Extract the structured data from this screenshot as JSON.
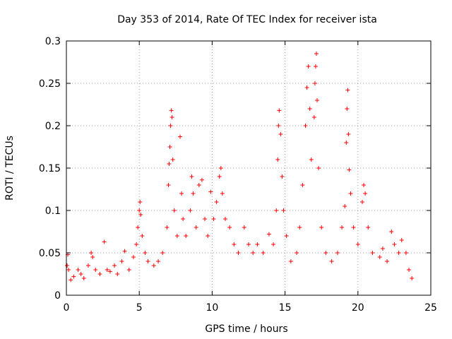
{
  "chart_data": {
    "type": "scatter",
    "title": "Day 353 of 2014, Rate Of TEC Index for receiver ista",
    "xlabel": "GPS time / hours",
    "ylabel": "ROTI / TECUs",
    "xlim": [
      0,
      25
    ],
    "ylim": [
      0,
      0.3
    ],
    "x_ticks": [
      0,
      5,
      10,
      15,
      20,
      25
    ],
    "x_tick_labels": [
      "0",
      "5",
      "10",
      "15",
      "20",
      "25"
    ],
    "y_ticks": [
      0,
      0.05,
      0.1,
      0.15,
      0.2,
      0.25,
      0.3
    ],
    "y_tick_labels": [
      "0",
      "0.05",
      "0.1",
      "0.15",
      "0.2",
      "0.25",
      "0.3"
    ],
    "grid": true,
    "marker": "+",
    "color": "#ff0000",
    "series": [
      {
        "name": "ROTI",
        "points": [
          [
            0.05,
            0.035
          ],
          [
            0.1,
            0.048
          ],
          [
            0.15,
            0.03
          ],
          [
            0.3,
            0.018
          ],
          [
            0.5,
            0.022
          ],
          [
            0.8,
            0.03
          ],
          [
            1.0,
            0.025
          ],
          [
            1.2,
            0.02
          ],
          [
            1.5,
            0.035
          ],
          [
            1.7,
            0.05
          ],
          [
            1.8,
            0.045
          ],
          [
            2.0,
            0.03
          ],
          [
            2.3,
            0.025
          ],
          [
            2.6,
            0.063
          ],
          [
            2.8,
            0.03
          ],
          [
            3.0,
            0.028
          ],
          [
            3.3,
            0.035
          ],
          [
            3.5,
            0.025
          ],
          [
            3.8,
            0.04
          ],
          [
            4.0,
            0.052
          ],
          [
            4.3,
            0.03
          ],
          [
            4.6,
            0.045
          ],
          [
            4.8,
            0.06
          ],
          [
            4.9,
            0.08
          ],
          [
            5.0,
            0.1
          ],
          [
            5.05,
            0.11
          ],
          [
            5.1,
            0.095
          ],
          [
            5.2,
            0.07
          ],
          [
            5.4,
            0.05
          ],
          [
            5.6,
            0.04
          ],
          [
            6.0,
            0.035
          ],
          [
            6.3,
            0.04
          ],
          [
            6.6,
            0.05
          ],
          [
            6.9,
            0.08
          ],
          [
            7.0,
            0.13
          ],
          [
            7.05,
            0.155
          ],
          [
            7.1,
            0.175
          ],
          [
            7.15,
            0.2
          ],
          [
            7.2,
            0.218
          ],
          [
            7.25,
            0.21
          ],
          [
            7.3,
            0.16
          ],
          [
            7.4,
            0.1
          ],
          [
            7.6,
            0.07
          ],
          [
            7.8,
            0.187
          ],
          [
            7.9,
            0.12
          ],
          [
            8.0,
            0.09
          ],
          [
            8.2,
            0.07
          ],
          [
            8.5,
            0.1
          ],
          [
            8.6,
            0.14
          ],
          [
            8.7,
            0.12
          ],
          [
            8.9,
            0.08
          ],
          [
            9.1,
            0.13
          ],
          [
            9.3,
            0.136
          ],
          [
            9.5,
            0.09
          ],
          [
            9.7,
            0.07
          ],
          [
            9.9,
            0.122
          ],
          [
            10.1,
            0.09
          ],
          [
            10.3,
            0.11
          ],
          [
            10.5,
            0.14
          ],
          [
            10.6,
            0.15
          ],
          [
            10.7,
            0.12
          ],
          [
            10.9,
            0.09
          ],
          [
            11.2,
            0.08
          ],
          [
            11.5,
            0.06
          ],
          [
            11.8,
            0.05
          ],
          [
            12.2,
            0.08
          ],
          [
            12.5,
            0.06
          ],
          [
            12.8,
            0.05
          ],
          [
            13.1,
            0.06
          ],
          [
            13.5,
            0.05
          ],
          [
            13.9,
            0.072
          ],
          [
            14.2,
            0.06
          ],
          [
            14.4,
            0.1
          ],
          [
            14.5,
            0.16
          ],
          [
            14.55,
            0.2
          ],
          [
            14.6,
            0.218
          ],
          [
            14.7,
            0.19
          ],
          [
            14.8,
            0.14
          ],
          [
            14.9,
            0.1
          ],
          [
            15.1,
            0.07
          ],
          [
            15.4,
            0.04
          ],
          [
            15.8,
            0.05
          ],
          [
            16.0,
            0.08
          ],
          [
            16.2,
            0.13
          ],
          [
            16.4,
            0.2
          ],
          [
            16.5,
            0.245
          ],
          [
            16.6,
            0.27
          ],
          [
            16.7,
            0.22
          ],
          [
            16.8,
            0.16
          ],
          [
            17.0,
            0.21
          ],
          [
            17.05,
            0.25
          ],
          [
            17.1,
            0.27
          ],
          [
            17.15,
            0.285
          ],
          [
            17.2,
            0.23
          ],
          [
            17.3,
            0.15
          ],
          [
            17.5,
            0.08
          ],
          [
            17.8,
            0.05
          ],
          [
            18.2,
            0.04
          ],
          [
            18.6,
            0.05
          ],
          [
            18.9,
            0.08
          ],
          [
            19.1,
            0.105
          ],
          [
            19.2,
            0.18
          ],
          [
            19.25,
            0.22
          ],
          [
            19.3,
            0.242
          ],
          [
            19.35,
            0.19
          ],
          [
            19.4,
            0.148
          ],
          [
            19.5,
            0.12
          ],
          [
            19.7,
            0.08
          ],
          [
            20.0,
            0.06
          ],
          [
            20.3,
            0.11
          ],
          [
            20.4,
            0.13
          ],
          [
            20.5,
            0.12
          ],
          [
            20.7,
            0.08
          ],
          [
            21.0,
            0.05
          ],
          [
            21.5,
            0.045
          ],
          [
            21.7,
            0.055
          ],
          [
            22.0,
            0.04
          ],
          [
            22.3,
            0.075
          ],
          [
            22.5,
            0.06
          ],
          [
            22.8,
            0.05
          ],
          [
            23.0,
            0.065
          ],
          [
            23.3,
            0.05
          ],
          [
            23.5,
            0.03
          ],
          [
            23.7,
            0.02
          ]
        ]
      }
    ]
  }
}
